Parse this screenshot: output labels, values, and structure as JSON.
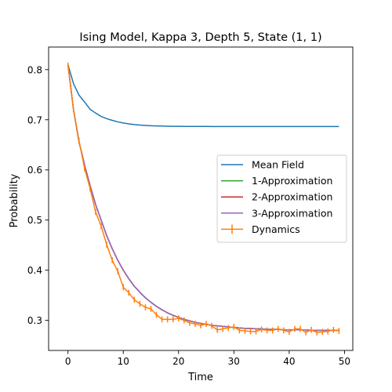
{
  "chart_data": {
    "type": "line",
    "title": "Ising Model, Kappa 3, Depth 5, State (1, 1)",
    "xlabel": "Time",
    "ylabel": "Probability",
    "xlim": [
      -3.5,
      51.5
    ],
    "ylim": [
      0.24,
      0.845
    ],
    "xticks": [
      0,
      10,
      20,
      30,
      40,
      50
    ],
    "yticks": [
      0.3,
      0.4,
      0.5,
      0.6,
      0.7,
      0.8
    ],
    "grid": false,
    "legend_position": "center-right",
    "series": [
      {
        "name": "Mean Field",
        "color": "#1f77b4",
        "x": [
          0,
          1,
          2,
          3,
          4,
          5,
          6,
          7,
          8,
          9,
          10,
          11,
          12,
          13,
          14,
          15,
          16,
          17,
          18,
          19,
          20,
          21,
          22,
          23,
          24,
          25,
          26,
          27,
          28,
          29,
          30,
          31,
          32,
          33,
          34,
          35,
          36,
          37,
          38,
          39,
          40,
          41,
          42,
          43,
          44,
          45,
          46,
          47,
          48,
          49
        ],
        "y": [
          0.81,
          0.772,
          0.749,
          0.7355,
          0.721,
          0.7134,
          0.7066,
          0.7023,
          0.6988,
          0.6958,
          0.6935,
          0.6918,
          0.6904,
          0.6894,
          0.6887,
          0.6881,
          0.6877,
          0.6874,
          0.6872,
          0.687,
          0.6869,
          0.6868,
          0.6868,
          0.6867,
          0.6867,
          0.6867,
          0.6866,
          0.6866,
          0.6866,
          0.6866,
          0.6866,
          0.6866,
          0.6866,
          0.6866,
          0.6866,
          0.6866,
          0.6866,
          0.6866,
          0.6866,
          0.6866,
          0.6866,
          0.6866,
          0.6866,
          0.6866,
          0.6866,
          0.6866,
          0.6866,
          0.6866,
          0.6866,
          0.6866
        ]
      },
      {
        "name": "1-Approximation",
        "color": "#2ca02c",
        "x": [
          0,
          1,
          2,
          3,
          4,
          5,
          6,
          7,
          8,
          9,
          10,
          11,
          12,
          13,
          14,
          15,
          16,
          17,
          18,
          19,
          20,
          21,
          22,
          23,
          24,
          25,
          26,
          27,
          28,
          29,
          30,
          31,
          32,
          33,
          34,
          35,
          36,
          37,
          38,
          39,
          40,
          41,
          42,
          43,
          44,
          45,
          46,
          47,
          48,
          49
        ],
        "y": [
          0.81,
          0.72,
          0.656,
          0.61,
          0.569,
          0.531,
          0.5,
          0.469,
          0.443,
          0.42,
          0.4,
          0.383,
          0.368,
          0.356,
          0.345,
          0.336,
          0.328,
          0.321,
          0.315,
          0.31,
          0.306,
          0.302,
          0.299,
          0.296,
          0.294,
          0.292,
          0.29,
          0.289,
          0.288,
          0.287,
          0.286,
          0.285,
          0.284,
          0.284,
          0.283,
          0.283,
          0.282,
          0.282,
          0.282,
          0.281,
          0.281,
          0.281,
          0.281,
          0.281,
          0.28,
          0.28,
          0.28,
          0.28,
          0.28,
          0.28
        ]
      },
      {
        "name": "2-Approximation",
        "color": "#d62728",
        "x": [
          0,
          1,
          2,
          3,
          4,
          5,
          6,
          7,
          8,
          9,
          10,
          11,
          12,
          13,
          14,
          15,
          16,
          17,
          18,
          19,
          20,
          21,
          22,
          23,
          24,
          25,
          26,
          27,
          28,
          29,
          30,
          31,
          32,
          33,
          34,
          35,
          36,
          37,
          38,
          39,
          40,
          41,
          42,
          43,
          44,
          45,
          46,
          47,
          48,
          49
        ],
        "y": [
          0.81,
          0.72,
          0.656,
          0.61,
          0.569,
          0.531,
          0.5,
          0.469,
          0.443,
          0.42,
          0.4,
          0.383,
          0.368,
          0.356,
          0.345,
          0.336,
          0.328,
          0.321,
          0.315,
          0.31,
          0.306,
          0.302,
          0.299,
          0.296,
          0.294,
          0.292,
          0.29,
          0.289,
          0.288,
          0.287,
          0.286,
          0.285,
          0.284,
          0.284,
          0.283,
          0.283,
          0.282,
          0.282,
          0.282,
          0.281,
          0.281,
          0.281,
          0.281,
          0.281,
          0.28,
          0.28,
          0.28,
          0.28,
          0.28,
          0.28
        ]
      },
      {
        "name": "3-Approximation",
        "color": "#9467bd",
        "x": [
          0,
          1,
          2,
          3,
          4,
          5,
          6,
          7,
          8,
          9,
          10,
          11,
          12,
          13,
          14,
          15,
          16,
          17,
          18,
          19,
          20,
          21,
          22,
          23,
          24,
          25,
          26,
          27,
          28,
          29,
          30,
          31,
          32,
          33,
          34,
          35,
          36,
          37,
          38,
          39,
          40,
          41,
          42,
          43,
          44,
          45,
          46,
          47,
          48,
          49
        ],
        "y": [
          0.81,
          0.72,
          0.656,
          0.61,
          0.569,
          0.531,
          0.5,
          0.469,
          0.443,
          0.42,
          0.4,
          0.383,
          0.368,
          0.356,
          0.345,
          0.336,
          0.328,
          0.321,
          0.315,
          0.31,
          0.306,
          0.302,
          0.299,
          0.296,
          0.294,
          0.292,
          0.29,
          0.289,
          0.288,
          0.287,
          0.286,
          0.285,
          0.284,
          0.284,
          0.283,
          0.283,
          0.282,
          0.282,
          0.282,
          0.281,
          0.281,
          0.281,
          0.281,
          0.281,
          0.28,
          0.28,
          0.28,
          0.28,
          0.28,
          0.28
        ]
      },
      {
        "name": "Dynamics",
        "color": "#ff7f0e",
        "error_bars": true,
        "x": [
          0,
          1,
          2,
          3,
          4,
          5,
          6,
          7,
          8,
          9,
          10,
          11,
          12,
          13,
          14,
          15,
          16,
          17,
          18,
          19,
          20,
          21,
          22,
          23,
          24,
          25,
          26,
          27,
          28,
          29,
          30,
          31,
          32,
          33,
          34,
          35,
          36,
          37,
          38,
          39,
          40,
          41,
          42,
          43,
          44,
          45,
          46,
          47,
          48,
          49
        ],
        "y": [
          0.81,
          0.72,
          0.658,
          0.603,
          0.563,
          0.516,
          0.488,
          0.451,
          0.42,
          0.398,
          0.366,
          0.355,
          0.341,
          0.333,
          0.326,
          0.323,
          0.311,
          0.302,
          0.302,
          0.302,
          0.304,
          0.3,
          0.295,
          0.293,
          0.29,
          0.293,
          0.289,
          0.281,
          0.283,
          0.285,
          0.287,
          0.28,
          0.279,
          0.278,
          0.278,
          0.282,
          0.28,
          0.28,
          0.283,
          0.28,
          0.277,
          0.283,
          0.283,
          0.276,
          0.281,
          0.276,
          0.277,
          0.278,
          0.281,
          0.279
        ],
        "yerr": [
          0.004,
          0.005,
          0.006,
          0.006,
          0.006,
          0.006,
          0.006,
          0.006,
          0.006,
          0.006,
          0.006,
          0.006,
          0.006,
          0.006,
          0.006,
          0.006,
          0.006,
          0.006,
          0.006,
          0.006,
          0.006,
          0.006,
          0.006,
          0.006,
          0.006,
          0.006,
          0.006,
          0.006,
          0.006,
          0.006,
          0.006,
          0.006,
          0.006,
          0.006,
          0.006,
          0.006,
          0.006,
          0.006,
          0.006,
          0.006,
          0.006,
          0.006,
          0.006,
          0.006,
          0.006,
          0.006,
          0.006,
          0.006,
          0.006,
          0.006
        ]
      }
    ]
  }
}
